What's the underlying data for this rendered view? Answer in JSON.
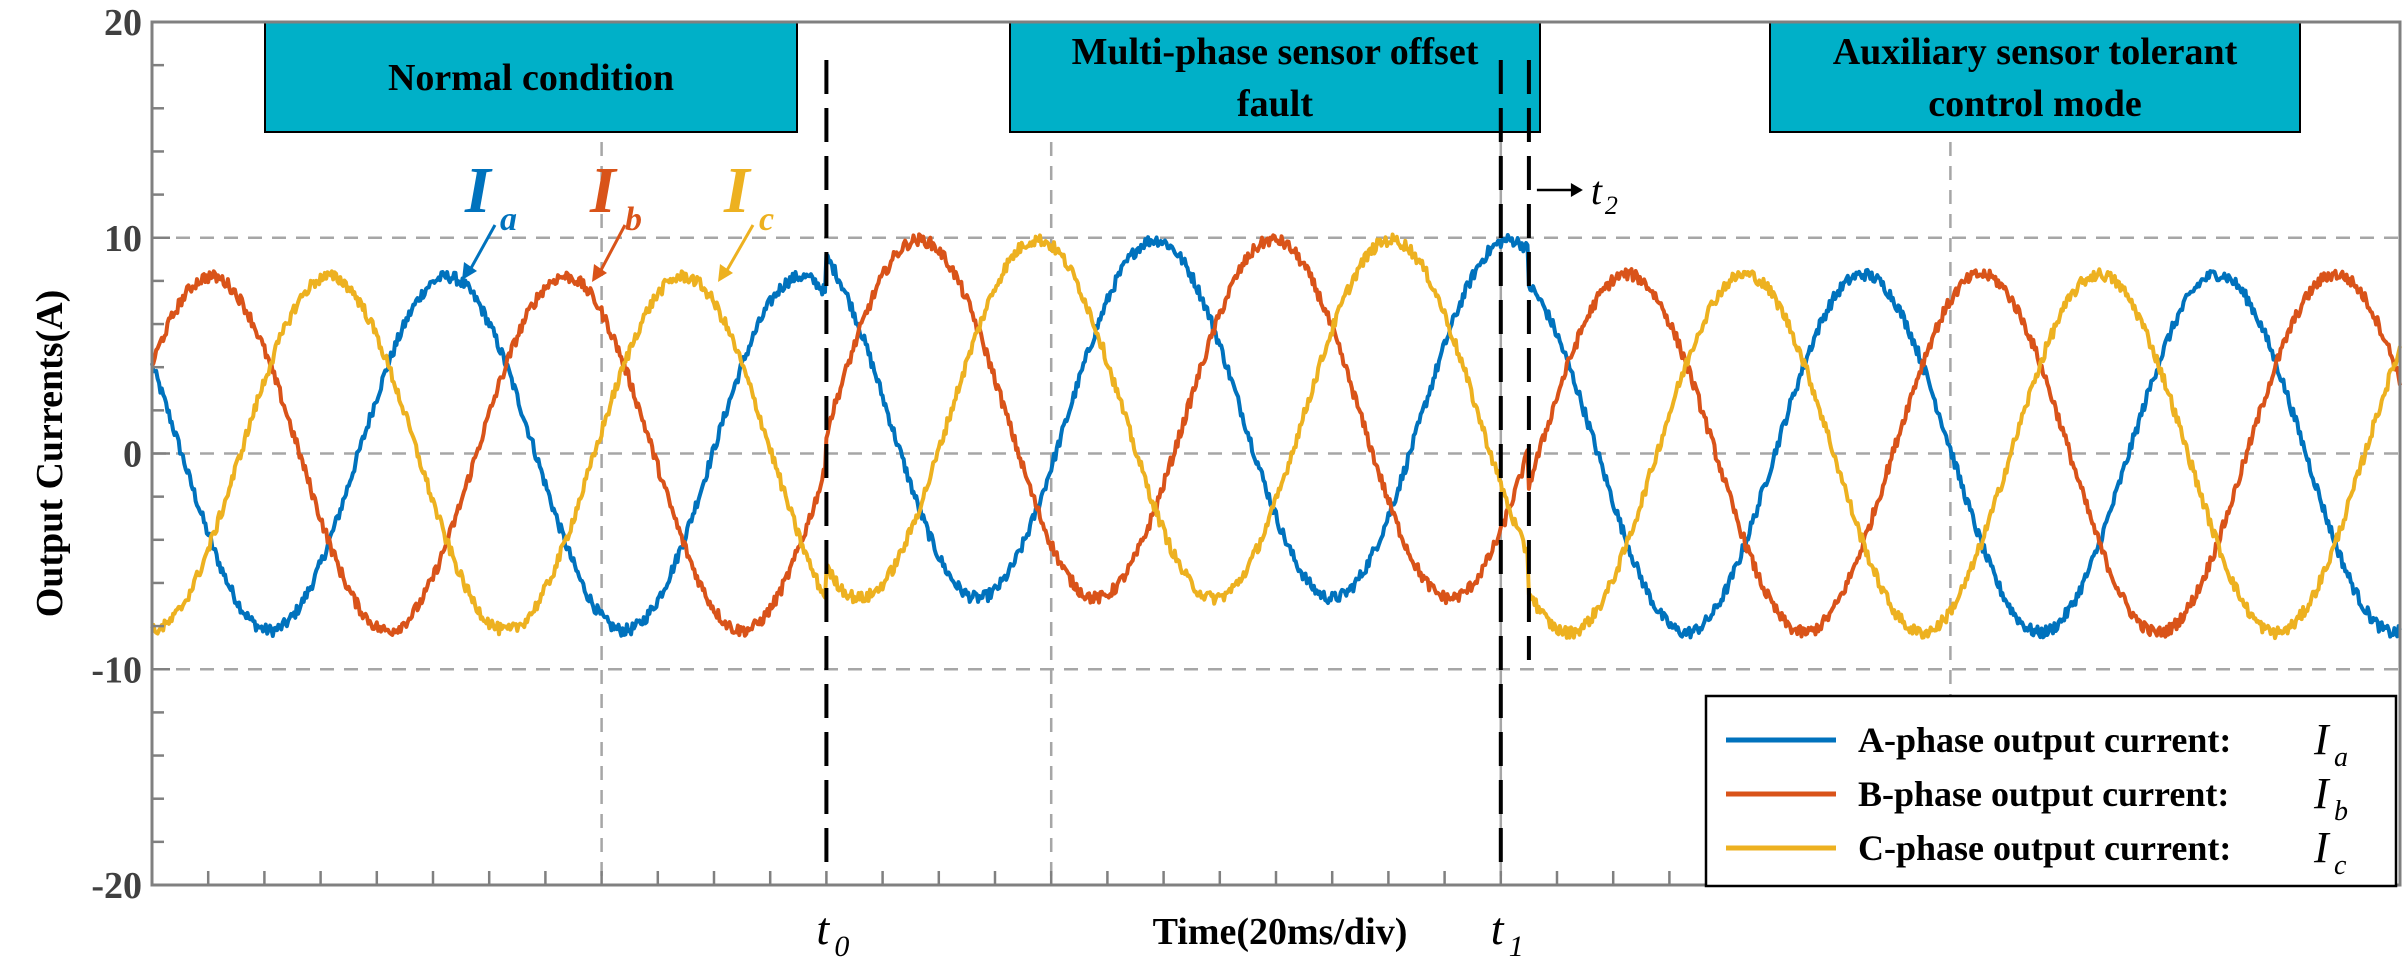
{
  "chart_data": {
    "type": "line",
    "title": "",
    "xlabel": "Time(20ms/div)",
    "ylabel": "Output Currents(A)",
    "xlim": [
      0,
      200
    ],
    "ylim": [
      -20,
      20
    ],
    "yticks": [
      20,
      10,
      0,
      -10,
      -20
    ],
    "ytick_labels": [
      "20",
      "10",
      "0",
      "-10",
      "-20"
    ],
    "grid": true,
    "legend_position": "bottom-right",
    "series": [
      {
        "name": "A-phase output current:",
        "symbol": "I",
        "sub": "a",
        "color": "#0072BD",
        "phase_deg": 150
      },
      {
        "name": "B-phase output current:",
        "symbol": "I",
        "sub": "b",
        "color": "#D95319",
        "phase_deg": 30
      },
      {
        "name": "C-phase output current:",
        "symbol": "I",
        "sub": "c",
        "color": "#EDB120",
        "phase_deg": -90
      }
    ],
    "waveform": {
      "period_ms": 31.5,
      "segments": [
        {
          "name": "Normal condition",
          "from_ms": 0,
          "to_ms": 60,
          "amplitude": 8.2
        },
        {
          "name": "Multi-phase sensor offset fault",
          "from_ms": 60,
          "to_ms": 122.5,
          "amplitude": 8.3,
          "offset": 1.6
        },
        {
          "name": "Auxiliary sensor tolerant control mode",
          "from_ms": 122.5,
          "to_ms": 200,
          "amplitude": 8.3
        }
      ]
    },
    "markers": [
      {
        "label": "t",
        "sub": "0",
        "x_ms": 60
      },
      {
        "label": "t",
        "sub": "1",
        "x_ms": 120
      },
      {
        "label": "t",
        "sub": "2",
        "x_ms": 122.5
      }
    ],
    "regions": [
      {
        "label_lines": [
          "Normal condition"
        ]
      },
      {
        "label_lines": [
          "Multi-phase sensor offset",
          "fault"
        ]
      },
      {
        "label_lines": [
          "Auxiliary sensor tolerant",
          "control mode"
        ]
      }
    ],
    "annotations": [
      {
        "symbol": "I",
        "sub": "a",
        "color": "#0072BD"
      },
      {
        "symbol": "I",
        "sub": "b",
        "color": "#D95319"
      },
      {
        "symbol": "I",
        "sub": "c",
        "color": "#EDB120"
      }
    ]
  },
  "colors": {
    "banner_fill": "#00B0C8",
    "grid": "#A6A6A6",
    "axis": "#808080"
  }
}
